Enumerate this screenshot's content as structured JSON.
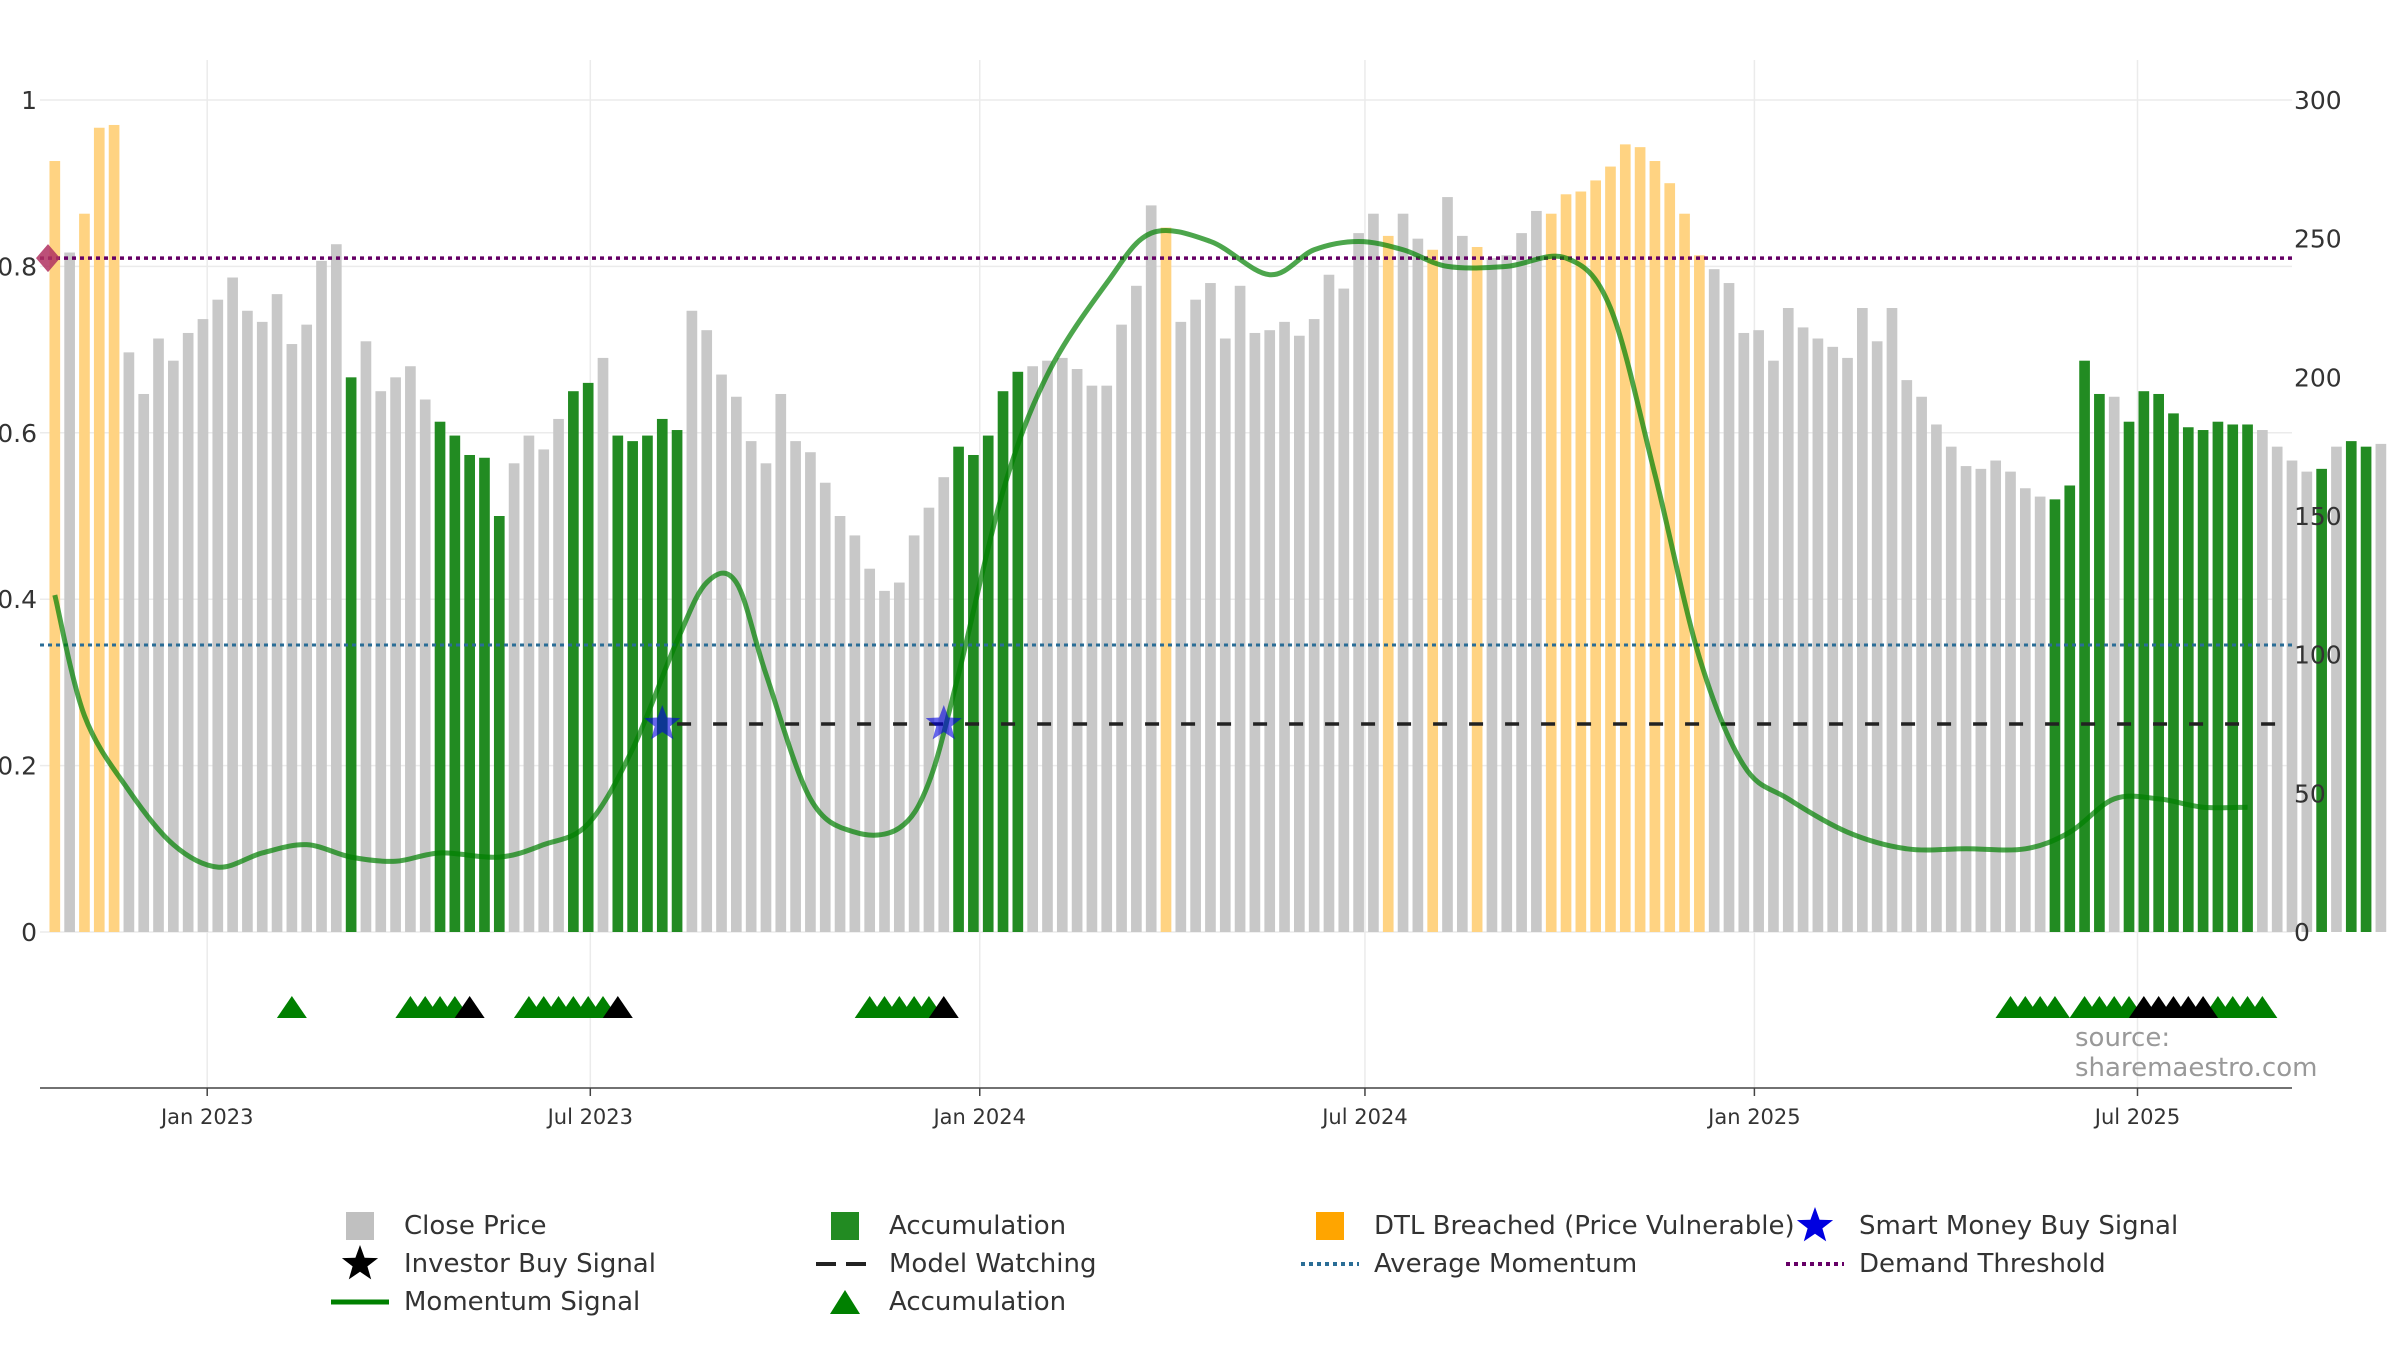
{
  "chart_data": {
    "type": "bar",
    "series": [
      {
        "name": "Close Price",
        "role": "bars",
        "axis": "right",
        "x_start": "2022-10-21",
        "interval_days": 7,
        "values": [
          278,
          245,
          259,
          290,
          291,
          209,
          194,
          214,
          206,
          216,
          221,
          228,
          236,
          224,
          220,
          230,
          212,
          219,
          242,
          248,
          200,
          213,
          195,
          200,
          204,
          192,
          184,
          179,
          172,
          171,
          150,
          169,
          179,
          174,
          185,
          195,
          198,
          207,
          179,
          177,
          179,
          185,
          181,
          224,
          217,
          201,
          193,
          177,
          169,
          194,
          177,
          173,
          162,
          150,
          143,
          131,
          123,
          126,
          143,
          153,
          164,
          175,
          172,
          179,
          195,
          202,
          204,
          206,
          207,
          203,
          197,
          197,
          219,
          233,
          262,
          254,
          220,
          228,
          234,
          214,
          233,
          216,
          217,
          220,
          215,
          221,
          237,
          232,
          252,
          259,
          251,
          259,
          250,
          246,
          265,
          251,
          247,
          243,
          244,
          252,
          260,
          259,
          266,
          267,
          271,
          276,
          284,
          283,
          278,
          270,
          259,
          244,
          239,
          234,
          216,
          217,
          206,
          225,
          218,
          214,
          211,
          207,
          225,
          213,
          225,
          199,
          193,
          183,
          175,
          168,
          167,
          170,
          166,
          160,
          157,
          156,
          161,
          206,
          194,
          193,
          184,
          195,
          194,
          187,
          182,
          181,
          184,
          183,
          183,
          181,
          175,
          170,
          166,
          167,
          175,
          177,
          175,
          176
        ],
        "colors": [
          "o",
          "g",
          "o",
          "o",
          "o",
          "g",
          "g",
          "g",
          "g",
          "g",
          "g",
          "g",
          "g",
          "g",
          "g",
          "g",
          "g",
          "g",
          "g",
          "g",
          "a",
          "g",
          "g",
          "g",
          "g",
          "g",
          "a",
          "a",
          "a",
          "a",
          "a",
          "g",
          "g",
          "g",
          "g",
          "a",
          "a",
          "g",
          "a",
          "a",
          "a",
          "a",
          "a",
          "g",
          "g",
          "g",
          "g",
          "g",
          "g",
          "g",
          "g",
          "g",
          "g",
          "g",
          "g",
          "g",
          "g",
          "g",
          "g",
          "g",
          "g",
          "a",
          "a",
          "a",
          "a",
          "a",
          "g",
          "g",
          "g",
          "g",
          "g",
          "g",
          "g",
          "g",
          "g",
          "o",
          "g",
          "g",
          "g",
          "g",
          "g",
          "g",
          "g",
          "g",
          "g",
          "g",
          "g",
          "g",
          "g",
          "g",
          "o",
          "g",
          "g",
          "o",
          "g",
          "g",
          "o",
          "g",
          "g",
          "g",
          "g",
          "o",
          "o",
          "o",
          "o",
          "o",
          "o",
          "o",
          "o",
          "o",
          "o",
          "o",
          "g",
          "g",
          "g",
          "g",
          "g",
          "g",
          "g",
          "g",
          "g",
          "g",
          "g",
          "g",
          "g",
          "g",
          "g",
          "g",
          "g",
          "g",
          "g",
          "g",
          "g",
          "g",
          "g",
          "a",
          "a",
          "a",
          "a",
          "g",
          "a",
          "a",
          "a",
          "a",
          "a",
          "a",
          "a",
          "a",
          "a",
          "g",
          "g",
          "g",
          "g",
          "a",
          "g",
          "a",
          "a",
          "g"
        ]
      },
      {
        "name": "Momentum Signal",
        "role": "line",
        "axis": "left",
        "points": [
          [
            "2022-10-21",
            0.405
          ],
          [
            "2022-11-04",
            0.26
          ],
          [
            "2022-11-25",
            0.17
          ],
          [
            "2022-12-16",
            0.105
          ],
          [
            "2023-01-06",
            0.078
          ],
          [
            "2023-01-27",
            0.095
          ],
          [
            "2023-02-17",
            0.105
          ],
          [
            "2023-03-10",
            0.09
          ],
          [
            "2023-03-31",
            0.085
          ],
          [
            "2023-04-21",
            0.095
          ],
          [
            "2023-05-19",
            0.09
          ],
          [
            "2023-06-09",
            0.105
          ],
          [
            "2023-06-30",
            0.13
          ],
          [
            "2023-07-21",
            0.22
          ],
          [
            "2023-08-11",
            0.35
          ],
          [
            "2023-08-25",
            0.42
          ],
          [
            "2023-09-08",
            0.42
          ],
          [
            "2023-09-22",
            0.31
          ],
          [
            "2023-10-13",
            0.16
          ],
          [
            "2023-11-03",
            0.12
          ],
          [
            "2023-11-24",
            0.125
          ],
          [
            "2023-12-08",
            0.18
          ],
          [
            "2023-12-22",
            0.31
          ],
          [
            "2024-01-12",
            0.53
          ],
          [
            "2024-02-02",
            0.67
          ],
          [
            "2024-03-01",
            0.78
          ],
          [
            "2024-03-22",
            0.84
          ],
          [
            "2024-04-19",
            0.83
          ],
          [
            "2024-05-17",
            0.79
          ],
          [
            "2024-06-07",
            0.82
          ],
          [
            "2024-06-28",
            0.83
          ],
          [
            "2024-07-19",
            0.82
          ],
          [
            "2024-08-09",
            0.8
          ],
          [
            "2024-09-06",
            0.8
          ],
          [
            "2024-10-04",
            0.81
          ],
          [
            "2024-10-25",
            0.75
          ],
          [
            "2024-11-15",
            0.55
          ],
          [
            "2024-12-06",
            0.33
          ],
          [
            "2024-12-27",
            0.2
          ],
          [
            "2025-01-17",
            0.16
          ],
          [
            "2025-02-14",
            0.12
          ],
          [
            "2025-03-14",
            0.1
          ],
          [
            "2025-04-11",
            0.1
          ],
          [
            "2025-05-09",
            0.1
          ],
          [
            "2025-05-30",
            0.12
          ],
          [
            "2025-06-20",
            0.16
          ],
          [
            "2025-07-11",
            0.16
          ],
          [
            "2025-08-01",
            0.15
          ],
          [
            "2025-08-22",
            0.15
          ]
        ]
      },
      {
        "name": "Average Momentum",
        "role": "hline",
        "axis": "left",
        "value": 0.345
      },
      {
        "name": "Demand Threshold",
        "role": "hline",
        "axis": "left",
        "value": 0.81
      },
      {
        "name": "Model Watching",
        "role": "hline-segment",
        "axis": "left",
        "value": 0.25,
        "from": "2023-08-11",
        "to": "2025-09-05"
      },
      {
        "name": "Smart Money Buy Signal",
        "role": "markers",
        "axis": "left",
        "points": [
          [
            "2023-08-04",
            0.25
          ],
          [
            "2023-12-15",
            0.25
          ]
        ]
      },
      {
        "name": "Accumulation",
        "role": "markers-strip",
        "dates": [
          "2023-02-10",
          "2023-04-07",
          "2023-04-14",
          "2023-04-21",
          "2023-04-28",
          "2023-06-02",
          "2023-06-09",
          "2023-06-16",
          "2023-06-23",
          "2023-06-30",
          "2023-07-07",
          "2023-11-10",
          "2023-11-17",
          "2023-11-24",
          "2023-12-01",
          "2023-12-08",
          "2025-05-02",
          "2025-05-09",
          "2025-05-16",
          "2025-05-23",
          "2025-06-06",
          "2025-06-13",
          "2025-06-20",
          "2025-06-27",
          "2025-08-08",
          "2025-08-15",
          "2025-08-22",
          "2025-08-29"
        ]
      },
      {
        "name": "Investor Buy Signal",
        "role": "markers-strip",
        "dates": [
          "2023-05-05",
          "2023-07-14",
          "2023-12-15",
          "2025-07-04",
          "2025-07-11",
          "2025-07-18",
          "2025-07-25",
          "2025-08-01"
        ]
      }
    ],
    "left_axis": {
      "ylim": [
        0,
        1
      ],
      "ticks": [
        0,
        0.2,
        0.4,
        0.6,
        0.8,
        1
      ],
      "tick_labels": [
        "0",
        "0.2",
        "0.4",
        "0.6",
        "0.8",
        "1"
      ]
    },
    "right_axis": {
      "ylim": [
        0,
        300
      ],
      "ticks": [
        0,
        50,
        100,
        150,
        200,
        250,
        300
      ],
      "tick_labels": [
        "0",
        "50",
        "100",
        "150",
        "200",
        "250",
        "300"
      ]
    },
    "x_axis": {
      "range": [
        "2022-10-14",
        "2025-09-12"
      ],
      "ticks": [
        "2023-01-01",
        "2023-07-01",
        "2024-01-01",
        "2024-07-01",
        "2025-01-01",
        "2025-07-01"
      ],
      "tick_labels": [
        "Jan 2023",
        "Jul 2023",
        "Jan 2024",
        "Jul 2024",
        "Jan 2025",
        "Jul 2025"
      ]
    },
    "grid": true,
    "legend_position": "bottom",
    "annotation": "source: sharemaestro.com"
  },
  "colors": {
    "close_price": "#c8c8c8",
    "accumulation": "#228b22",
    "dtl_breached": "#ffd382",
    "dtl_legend": "#ffa500",
    "momentum": "#008000",
    "average": "#2a6d96",
    "threshold": "#660066",
    "model": "#222222",
    "smart_money": "#0000e0",
    "investor": "#000000"
  },
  "legend": [
    {
      "label": "Close Price",
      "symbol": "square-gray"
    },
    {
      "label": "Accumulation",
      "symbol": "square-green"
    },
    {
      "label": "DTL Breached (Price Vulnerable)",
      "symbol": "square-orange"
    },
    {
      "label": "Smart Money Buy Signal",
      "symbol": "star-blue"
    },
    {
      "label": "Investor Buy Signal",
      "symbol": "star-black"
    },
    {
      "label": "Model Watching",
      "symbol": "dash-black"
    },
    {
      "label": "Average Momentum",
      "symbol": "dot-blue"
    },
    {
      "label": "Demand Threshold",
      "symbol": "dot-purple"
    },
    {
      "label": "Momentum Signal",
      "symbol": "line-green"
    },
    {
      "label": "Accumulation",
      "symbol": "triangle-green"
    }
  ]
}
